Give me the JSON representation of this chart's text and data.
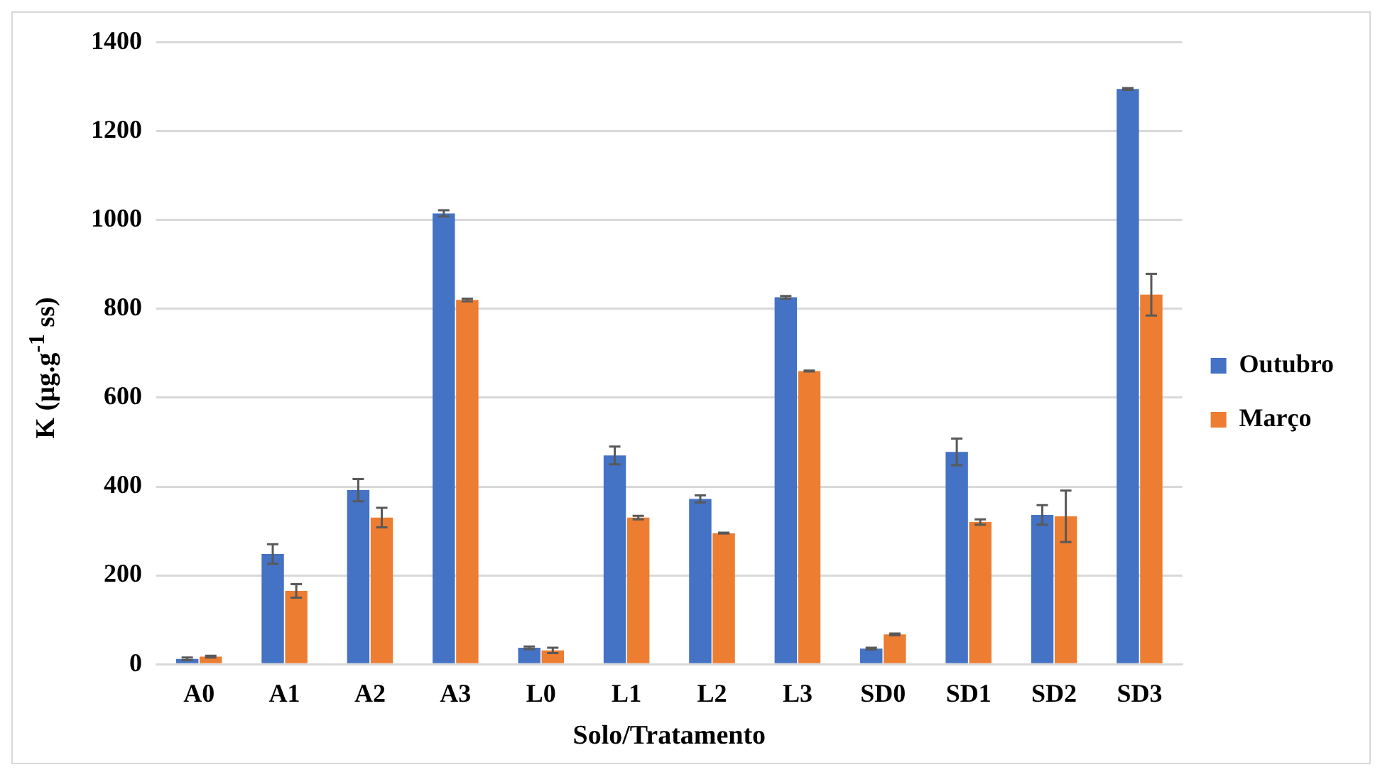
{
  "chart_data": {
    "type": "bar",
    "xlabel": "Solo/Tratamento",
    "ylabel": "K (µg.g$^{-1}$ ss)",
    "categories": [
      "A0",
      "A1",
      "A2",
      "A3",
      "L0",
      "L1",
      "L2",
      "L3",
      "SD0",
      "SD1",
      "SD2",
      "SD3"
    ],
    "series": [
      {
        "name": "Outubro",
        "color": "#4472c4",
        "values": [
          12,
          248,
          392,
          1015,
          37,
          470,
          372,
          826,
          35,
          478,
          336,
          1295
        ],
        "errors": [
          3,
          22,
          25,
          7,
          3,
          20,
          8,
          3,
          2,
          30,
          22,
          2
        ]
      },
      {
        "name": "Março",
        "color": "#ed7d31",
        "values": [
          17,
          165,
          330,
          820,
          31,
          330,
          295,
          660,
          67,
          320,
          333,
          832
        ],
        "errors": [
          2,
          15,
          22,
          3,
          6,
          4,
          1,
          1,
          2,
          6,
          58,
          47
        ]
      }
    ],
    "ylim": [
      0,
      1400
    ],
    "yticks": [
      0,
      200,
      400,
      600,
      800,
      1000,
      1200,
      1400
    ],
    "grid": "y",
    "legend": "right"
  }
}
